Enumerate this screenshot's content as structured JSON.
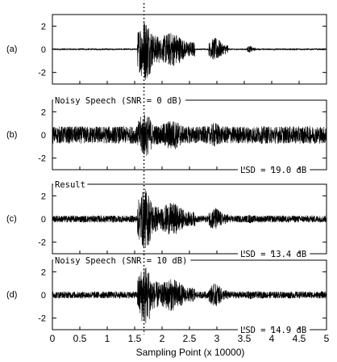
{
  "chart_data": {
    "type": "line",
    "xlabel": "Sampling Point (x 10000)",
    "xlim": [
      0,
      5
    ],
    "x_ticks": [
      "0",
      "0.5",
      "1",
      "1.5",
      "2",
      "2.5",
      "3",
      "3.5",
      "4",
      "4.5",
      "5"
    ],
    "x_tick_values": [
      0,
      0.5,
      1,
      1.5,
      2,
      2.5,
      3,
      3.5,
      4,
      4.5,
      5
    ],
    "y_ticks": [
      "2",
      "0",
      "-2"
    ],
    "y_tick_values": [
      2,
      0,
      -2
    ],
    "ylim": [
      -3,
      3
    ],
    "vline_x": 1.67,
    "panels": [
      {
        "letter": "(a)",
        "top_label": "",
        "bottom_label": "",
        "baseline_amp": 0.06,
        "segments": [
          {
            "x": [
              1.55,
              1.95
            ],
            "amp": 2.7
          },
          {
            "x": [
              1.95,
              2.6
            ],
            "amp": 1.5
          },
          {
            "x": [
              2.85,
              3.2
            ],
            "amp": 1.0
          },
          {
            "x": [
              3.55,
              3.7
            ],
            "amp": 0.3
          }
        ]
      },
      {
        "letter": "(b)",
        "top_label": "Noisy Speech (SNR = 0 dB)",
        "bottom_label": "LSD = 19.0 dB",
        "baseline_amp": 0.75,
        "segments": [
          {
            "x": [
              1.55,
              1.95
            ],
            "amp": 1.9
          },
          {
            "x": [
              1.95,
              2.6
            ],
            "amp": 1.3
          },
          {
            "x": [
              2.85,
              3.2
            ],
            "amp": 1.1
          }
        ]
      },
      {
        "letter": "(c)",
        "top_label": "Result",
        "bottom_label": "LSD = 13.4 dB",
        "baseline_amp": 0.3,
        "segments": [
          {
            "x": [
              1.55,
              1.95
            ],
            "amp": 2.6
          },
          {
            "x": [
              1.95,
              2.6
            ],
            "amp": 1.4
          },
          {
            "x": [
              2.85,
              3.2
            ],
            "amp": 1.0
          },
          {
            "x": [
              3.55,
              3.7
            ],
            "amp": 0.4
          }
        ]
      },
      {
        "letter": "(d)",
        "top_label": "Noisy Speech (SNR = 10 dB)",
        "bottom_label": "LSD = 14.9 dB",
        "baseline_amp": 0.3,
        "segments": [
          {
            "x": [
              1.55,
              1.95
            ],
            "amp": 2.6
          },
          {
            "x": [
              1.95,
              2.6
            ],
            "amp": 1.4
          },
          {
            "x": [
              2.85,
              3.2
            ],
            "amp": 1.0
          },
          {
            "x": [
              3.55,
              3.7
            ],
            "amp": 0.4
          }
        ]
      }
    ]
  }
}
